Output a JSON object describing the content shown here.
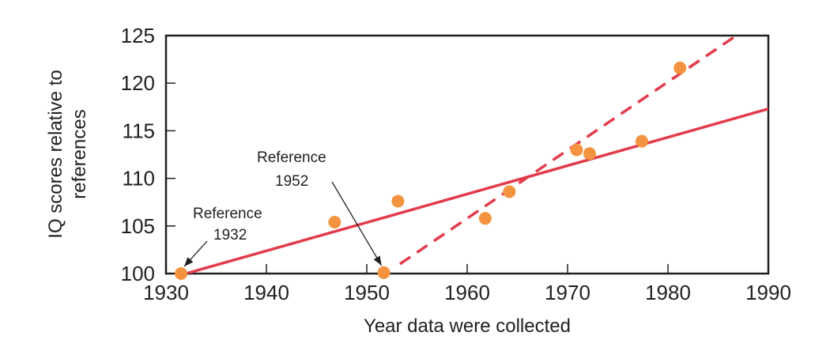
{
  "chart_data": {
    "type": "scatter",
    "xlabel": "Year data were collected",
    "ylabel": "IQ scores relative to references",
    "ylabel_lines": [
      "IQ scores relative to",
      "references"
    ],
    "xlim": [
      1930,
      1990
    ],
    "ylim": [
      100,
      125
    ],
    "xticks": [
      1930,
      1940,
      1950,
      1960,
      1970,
      1980,
      1990
    ],
    "yticks": [
      100,
      105,
      110,
      115,
      120,
      125
    ],
    "grid": false,
    "points": [
      {
        "x": 1931.5,
        "y": 100.0
      },
      {
        "x": 1946.8,
        "y": 105.4
      },
      {
        "x": 1951.7,
        "y": 100.1
      },
      {
        "x": 1953.1,
        "y": 107.6
      },
      {
        "x": 1961.8,
        "y": 105.8
      },
      {
        "x": 1964.2,
        "y": 108.6
      },
      {
        "x": 1970.9,
        "y": 113.0
      },
      {
        "x": 1972.2,
        "y": 112.6
      },
      {
        "x": 1977.4,
        "y": 113.9
      },
      {
        "x": 1981.2,
        "y": 121.6
      }
    ],
    "lines": [
      {
        "style": "solid",
        "from": {
          "x": 1932,
          "y": 100
        },
        "to": {
          "x": 1990,
          "y": 117.3
        }
      },
      {
        "style": "dashed",
        "from": {
          "x": 1953.3,
          "y": 101
        },
        "to": {
          "x": 1986.8,
          "y": 125
        }
      }
    ],
    "annotations": [
      {
        "lines": [
          "Reference",
          "1932"
        ],
        "target": {
          "x": 1931.5,
          "y": 100
        }
      },
      {
        "lines": [
          "Reference",
          "1952"
        ],
        "target": {
          "x": 1951.7,
          "y": 100.1
        }
      }
    ],
    "colors": {
      "points": "#f4933f",
      "lines": "#e23b4b",
      "axis": "#231f20"
    }
  }
}
